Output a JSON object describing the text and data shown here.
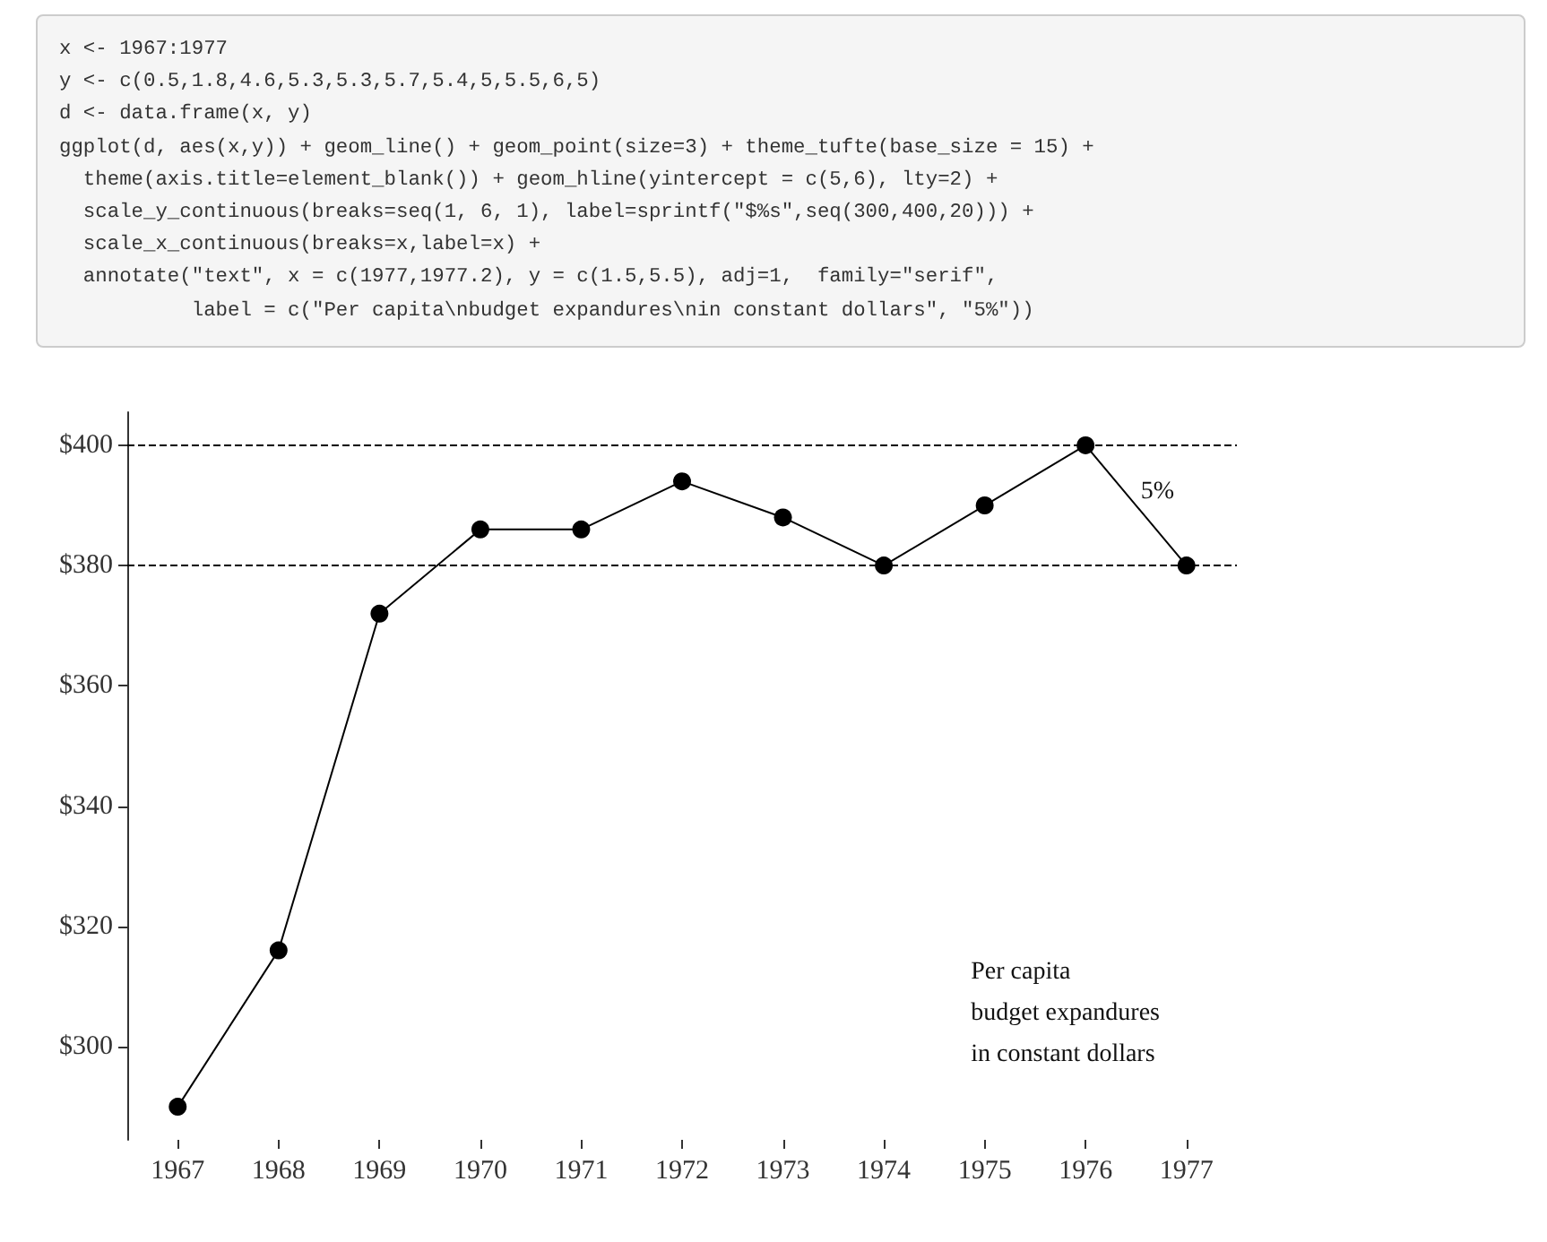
{
  "chart_data": {
    "type": "line",
    "subtitle": "x <- 1967:1977\ny <- c(0.5,1.8,4.6,5.3,5.3,5.7,5.4,5,5.5,6,5)\nd <- data.frame(x, y)\nggplot(d, aes(x,y)) + geom_line() + geom_point(size=3) + theme_tufte(base_size = 15) +\n  theme(axis.title=element_blank()) + geom_hline(yintercept = c(5,6), lty=2) +\n  scale_y_continuous(breaks=seq(1, 6, 1), label=sprintf(\"$%s\",seq(300,400,20))) +\n  scale_x_continuous(breaks=x,label=x) +\n  annotate(\"text\", x = c(1977,1977.2), y = c(1.5,5.5), adj=1,  family=\"serif\",\n           label = c(\"Per capita\\nbudget expandures\\nin constant dollars\", \"5%\"))",
    "x": [
      1967,
      1968,
      1969,
      1970,
      1971,
      1972,
      1973,
      1974,
      1975,
      1976,
      1977
    ],
    "series": [
      {
        "color": "#000000",
        "values": [
          290,
          316,
          372,
          386,
          386,
          394,
          388,
          380,
          390,
          400,
          380
        ]
      }
    ],
    "xlim": [
      1966.5,
      1977.5
    ],
    "xticks": [
      1967,
      1968,
      1969,
      1970,
      1971,
      1972,
      1973,
      1974,
      1975,
      1976,
      1977
    ],
    "ylim": [
      284.5,
      405.5
    ],
    "yticks": [
      {
        "value": 300,
        "label": "$300"
      },
      {
        "value": 320,
        "label": "$320"
      },
      {
        "value": 340,
        "label": "$340"
      },
      {
        "value": 360,
        "label": "$360"
      },
      {
        "value": 380,
        "label": "$380"
      },
      {
        "value": 400,
        "label": "$400"
      }
    ],
    "ref_lines": [
      {
        "axis": "y",
        "value": 380,
        "color": "#000000",
        "line_style": "dashed"
      },
      {
        "axis": "y",
        "value": 400,
        "color": "#000000",
        "line_style": "dashed"
      }
    ],
    "annotations": [
      "Per capita\nbudget expandures\nin constant dollars",
      "5%"
    ],
    "marker": "circle",
    "line_style": "solid",
    "grid": false
  }
}
